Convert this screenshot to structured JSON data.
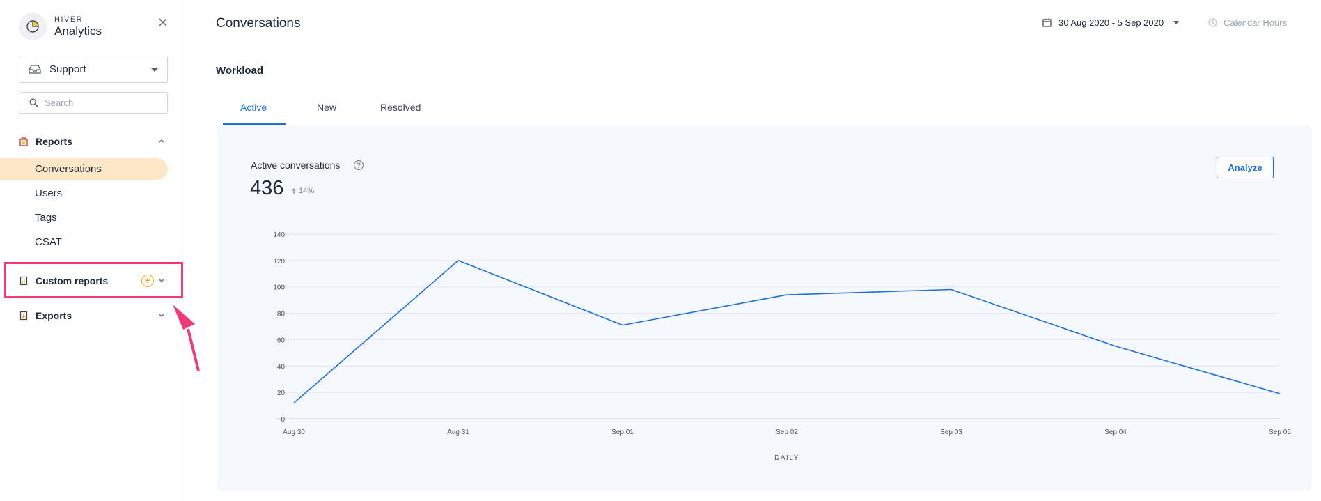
{
  "brand": {
    "sub": "HIVER",
    "title": "Analytics"
  },
  "inbox": {
    "selected": "Support"
  },
  "search": {
    "placeholder": "Search"
  },
  "reports": {
    "label": "Reports",
    "items": [
      {
        "label": "Conversations",
        "active": true
      },
      {
        "label": "Users"
      },
      {
        "label": "Tags"
      },
      {
        "label": "CSAT"
      }
    ]
  },
  "custom_reports": {
    "label": "Custom reports",
    "add_symbol": "+"
  },
  "exports": {
    "label": "Exports"
  },
  "header": {
    "title": "Conversations",
    "date_range": "30 Aug 2020 - 5 Sep 2020",
    "calendar_hours": "Calendar Hours"
  },
  "workload": {
    "label": "Workload",
    "tabs": [
      {
        "label": "Active",
        "active": true
      },
      {
        "label": "New"
      },
      {
        "label": "Resolved"
      }
    ]
  },
  "metric": {
    "title": "Active conversations",
    "value": "436",
    "delta": "14%",
    "analyze_label": "Analyze"
  },
  "colors": {
    "accent": "#1e6fd9",
    "active_nav_bg": "#fde7c7",
    "highlight_box": "#ef3b76",
    "plus_badge": "#e8a81a"
  },
  "chart_data": {
    "type": "line",
    "categories": [
      "Aug 30",
      "Aug 31",
      "Sep 01",
      "Sep 02",
      "Sep 03",
      "Sep 04",
      "Sep 05"
    ],
    "values": [
      12,
      120,
      71,
      94,
      98,
      55,
      19
    ],
    "y_ticks": [
      0,
      20,
      40,
      60,
      80,
      100,
      120,
      140
    ],
    "ylim": [
      0,
      140
    ],
    "xlabel": "DAILY",
    "grid": true,
    "line_color": "#1e6fd9"
  }
}
